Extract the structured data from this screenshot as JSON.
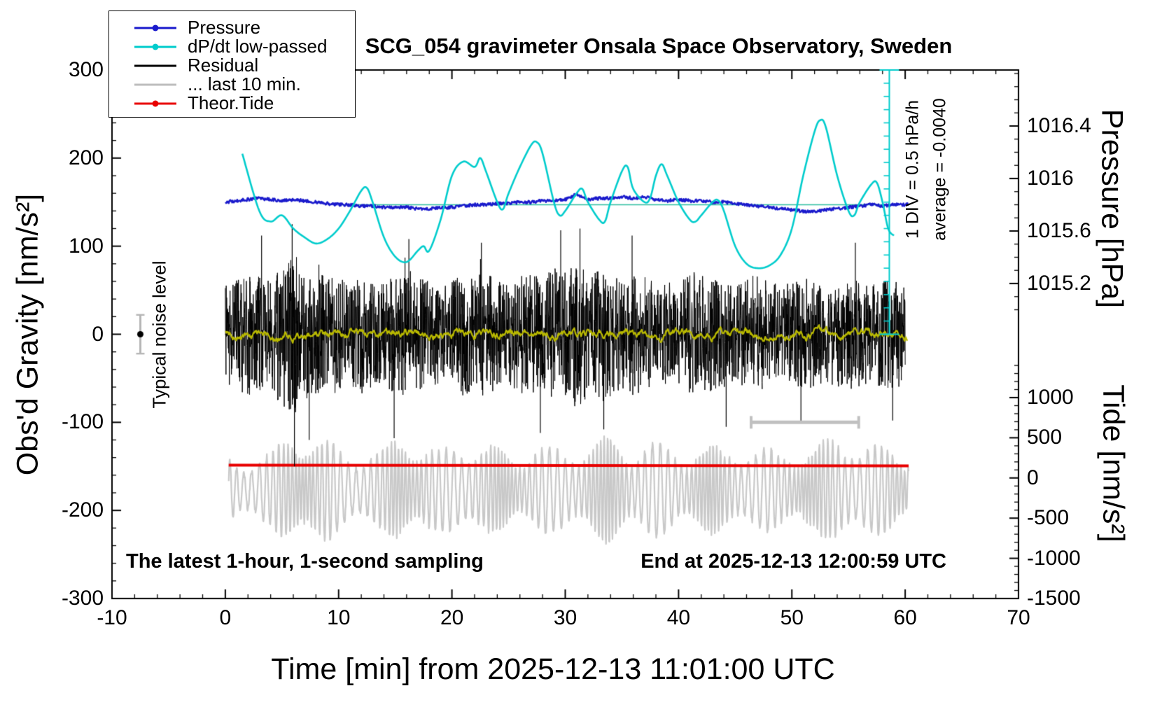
{
  "title": "SCG_054 gravimeter Onsala Space Observatory, Sweden",
  "legend": {
    "items": [
      {
        "label": "Pressure",
        "color": "#1a1acc",
        "dot": true
      },
      {
        "label": "dP/dt low-passed",
        "color": "#00cccc",
        "dot": true
      },
      {
        "label": "Residual",
        "color": "#000000",
        "dot": false
      },
      {
        "label": "... last 10 min.",
        "color": "#bdbdbd",
        "dot": false
      },
      {
        "label": "Theor.Tide",
        "color": "#e80000",
        "dot": true
      }
    ]
  },
  "axes": {
    "x": {
      "title": "Time [min] from 2025-12-13 11:01:00 UTC",
      "min": -10,
      "max": 70,
      "major_ticks": [
        -10,
        0,
        10,
        20,
        30,
        40,
        50,
        60,
        70
      ],
      "minor_step": 2
    },
    "y_left": {
      "title": "Obs'd Gravity [nm/s²]",
      "min": -300,
      "max": 300,
      "major_ticks": [
        -300,
        -200,
        -100,
        0,
        100,
        200,
        300
      ],
      "minor_step": 20
    },
    "y_right_pressure": {
      "title": "Pressure [hPa]",
      "ticks": [
        1016.4,
        1016,
        1015.6,
        1015.2
      ],
      "minor_step": 0.1
    },
    "y_right_tide": {
      "title": "Tide [nm/s²]",
      "ticks": [
        1000,
        500,
        0,
        -500,
        -1000,
        -1500
      ],
      "minor_step": 100
    }
  },
  "annotations": {
    "sampling_note": "The latest 1-hour, 1-second sampling",
    "end_note": "End at 2025-12-13 12:00:59 UTC",
    "noise_label": "Typical noise level",
    "div_label": "1 DIV = 0.5 hPa/h",
    "average_label": "average = -0.0040"
  },
  "chart_data": {
    "type": "line",
    "title": "SCG_054 gravimeter Onsala Space Observatory, Sweden",
    "x_axis": {
      "label": "Time [min] from 2025-12-13 11:01:00 UTC",
      "range": [
        -10,
        70
      ],
      "major_tick": 10
    },
    "y_axes": {
      "gravity": {
        "label": "Obs'd Gravity [nm/s²]",
        "range": [
          -300,
          300
        ],
        "side": "left"
      },
      "pressure": {
        "label": "Pressure [hPa]",
        "tick_labels": [
          1016.4,
          1016,
          1015.6,
          1015.2
        ],
        "side": "right"
      },
      "tide": {
        "label": "Tide [nm/s²]",
        "tick_labels": [
          1000,
          500,
          0,
          -500,
          -1000,
          -1500
        ],
        "side": "right"
      }
    },
    "series": [
      {
        "name": "Pressure",
        "axis": "pressure",
        "color": "#1a1acc",
        "noise_hpa": 0.012,
        "x_start": 0,
        "x_step": 1,
        "values": [
          1015.82,
          1015.83,
          1015.84,
          1015.85,
          1015.84,
          1015.83,
          1015.84,
          1015.83,
          1015.82,
          1015.81,
          1015.8,
          1015.8,
          1015.79,
          1015.79,
          1015.78,
          1015.78,
          1015.78,
          1015.77,
          1015.77,
          1015.78,
          1015.78,
          1015.79,
          1015.8,
          1015.8,
          1015.81,
          1015.81,
          1015.82,
          1015.82,
          1015.83,
          1015.83,
          1015.84,
          1015.88,
          1015.84,
          1015.85,
          1015.85,
          1015.86,
          1015.85,
          1015.86,
          1015.84,
          1015.83,
          1015.84,
          1015.83,
          1015.83,
          1015.82,
          1015.82,
          1015.81,
          1015.8,
          1015.79,
          1015.78,
          1015.77,
          1015.76,
          1015.75,
          1015.75,
          1015.76,
          1015.77,
          1015.78,
          1015.79,
          1015.8,
          1015.79,
          1015.8,
          1015.8
        ]
      },
      {
        "name": "dP/dt low-passed",
        "axis": "gravity",
        "color": "#00cccc",
        "x": [
          1.5,
          3,
          4,
          5,
          6,
          7,
          8,
          9,
          10,
          11,
          12,
          12.5,
          13,
          14,
          15,
          16,
          17,
          17.5,
          18,
          19,
          20,
          21,
          22,
          22.5,
          23,
          24,
          24.5,
          25,
          26,
          27,
          27.5,
          28,
          29,
          29.5,
          30,
          31,
          31.5,
          32,
          33,
          33.5,
          34,
          35,
          35.5,
          36,
          37,
          37.5,
          38,
          38.5,
          39,
          40,
          41,
          41.5,
          42,
          43,
          43.5,
          44,
          45,
          46,
          47,
          48,
          49,
          50,
          51,
          52,
          52.5,
          53,
          54,
          55,
          55.5,
          56,
          57,
          57.5,
          58,
          58.5,
          59
        ],
        "values": [
          205,
          140,
          128,
          135,
          120,
          110,
          103,
          108,
          120,
          140,
          163,
          166,
          150,
          110,
          88,
          82,
          95,
          100,
          95,
          130,
          180,
          196,
          190,
          200,
          185,
          150,
          142,
          160,
          190,
          215,
          218,
          205,
          150,
          135,
          140,
          160,
          165,
          150,
          130,
          128,
          150,
          185,
          190,
          165,
          150,
          155,
          180,
          193,
          180,
          150,
          130,
          128,
          135,
          150,
          152,
          140,
          100,
          80,
          75,
          78,
          90,
          120,
          180,
          230,
          243,
          235,
          180,
          140,
          135,
          150,
          170,
          172,
          150,
          120,
          112
        ]
      },
      {
        "name": "Residual",
        "axis": "gravity",
        "color": "#000000",
        "center": 0,
        "envelope_x_start": 0,
        "envelope_x_step": 1,
        "envelope": [
          55,
          62,
          70,
          65,
          60,
          85,
          95,
          75,
          68,
          72,
          65,
          60,
          68,
          62,
          58,
          70,
          75,
          65,
          60,
          55,
          62,
          70,
          66,
          72,
          60,
          58,
          66,
          72,
          64,
          78,
          70,
          85,
          72,
          80,
          68,
          64,
          70,
          66,
          60,
          58,
          66,
          72,
          68,
          64,
          60,
          56,
          62,
          66,
          60,
          56,
          60,
          64,
          60,
          56,
          60,
          64,
          60,
          56,
          60,
          62,
          58
        ],
        "spikes": [
          {
            "x": 3.2,
            "v": 112
          },
          {
            "x": 5.9,
            "v": 125
          },
          {
            "x": 6.1,
            "v": -150
          },
          {
            "x": 7.4,
            "v": -120
          },
          {
            "x": 14.9,
            "v": -118
          },
          {
            "x": 16.2,
            "v": 108
          },
          {
            "x": 22.6,
            "v": 104
          },
          {
            "x": 27.8,
            "v": -112
          },
          {
            "x": 29.6,
            "v": 118
          },
          {
            "x": 31.3,
            "v": 120
          },
          {
            "x": 33.4,
            "v": -108
          },
          {
            "x": 35.9,
            "v": 112
          },
          {
            "x": 44.2,
            "v": -105
          },
          {
            "x": 50.8,
            "v": -100
          },
          {
            "x": 55.6,
            "v": 104
          },
          {
            "x": 58.9,
            "v": -98
          }
        ]
      },
      {
        "name": "Residual mean",
        "axis": "gravity",
        "color": "#b9b900",
        "amplitude": 6
      },
      {
        "name": "... last 10 min.",
        "axis": "tide",
        "color": "#c8c8c8",
        "center": -150,
        "envelope_x_start": 0,
        "envelope_x_step": 1,
        "envelope": [
          420,
          380,
          450,
          500,
          480,
          600,
          750,
          820,
          700,
          650,
          550,
          500,
          560,
          520,
          480,
          700,
          760,
          650,
          560,
          500,
          620,
          700,
          640,
          560,
          520,
          480,
          540,
          600,
          560,
          520,
          560,
          620,
          580,
          640,
          700,
          650,
          600,
          680,
          620,
          560,
          520,
          560,
          600,
          560,
          520,
          560,
          600,
          560,
          520,
          480,
          540,
          600,
          560,
          620,
          700,
          780,
          650,
          580,
          560,
          600,
          520
        ],
        "period_min": 0.55
      },
      {
        "name": "Theor.Tide",
        "axis": "tide",
        "color": "#e80000",
        "x": [
          0.3,
          60.3
        ],
        "values": [
          160,
          150
        ]
      }
    ],
    "reference_line": {
      "axis": "pressure",
      "value": 1015.8,
      "x": [
        10.2,
        58.6
      ],
      "color": "#2fbfa0"
    },
    "pressure_scalebar": {
      "x": 58.6,
      "top_gravity": 300,
      "bottom_gravity": 0,
      "divisions": 20,
      "label": "1 DIV = 0.5 hPa/h",
      "average_label": "average = -0.0040",
      "color": "#00cccc"
    },
    "noise_marker": {
      "x": -7.5,
      "value": 0,
      "error": 22,
      "label": "Typical noise level"
    },
    "duration_bar": {
      "x": [
        46.4,
        55.9
      ],
      "gravity_value": -100,
      "color": "#c0c0c0"
    }
  }
}
